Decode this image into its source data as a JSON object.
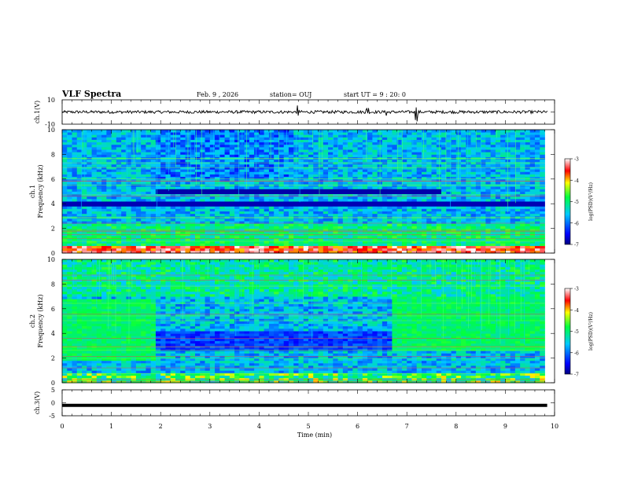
{
  "header": {
    "title": "VLF Spectra",
    "date": "Feb. 9 , 2026",
    "station": "station= OUJ",
    "start_ut": "start UT =  9 : 20: 0"
  },
  "chart_data": [
    {
      "type": "line",
      "name": "ch1-voltage",
      "ylabel": "ch.1(V)",
      "ylim": [
        -10,
        10
      ],
      "y_tick_labels": [
        "10",
        "-10"
      ],
      "xlim": [
        0,
        10
      ],
      "series": [
        {
          "name": "ch.1",
          "mean": 0,
          "noise_amplitude": 1.2,
          "spikes_min": [
            4.8,
            6.2,
            6.6,
            7.2
          ]
        }
      ]
    },
    {
      "type": "heatmap",
      "name": "ch1-spectrogram",
      "ylabel": "ch.1\nFrequency (kHz)",
      "ylim": [
        0,
        10
      ],
      "y_tick_labels": [
        "0",
        "2",
        "4",
        "6",
        "8",
        "10"
      ],
      "xlim": [
        0,
        9.8
      ],
      "colorbar": {
        "label": "log(PSD)(V²/Hz)",
        "range": [
          -7,
          -3
        ],
        "tick_labels": [
          "-3",
          "-4",
          "-5",
          "-6",
          "-7"
        ]
      },
      "regime_change_min": [
        1.9,
        4.7,
        7.7
      ]
    },
    {
      "type": "heatmap",
      "name": "ch2-spectrogram",
      "ylabel": "ch.2\nFrequency (kHz)",
      "ylim": [
        0,
        10
      ],
      "y_tick_labels": [
        "0",
        "2",
        "4",
        "6",
        "8",
        "10"
      ],
      "xlim": [
        0,
        9.8
      ],
      "colorbar": {
        "label": "log(PSD)(V²/Hz)",
        "range": [
          -7,
          -3
        ],
        "tick_labels": [
          "-3",
          "-4",
          "-5",
          "-6",
          "-7"
        ]
      },
      "regime_change_min": [
        1.85,
        6.65
      ]
    },
    {
      "type": "line",
      "name": "ch3-voltage",
      "ylabel": "ch.3(V)",
      "ylim": [
        -5,
        5
      ],
      "y_tick_labels": [
        "5",
        "0",
        "-5"
      ],
      "xlim": [
        0,
        10
      ],
      "series": [
        {
          "name": "ch.3",
          "mean": -1.0,
          "noise_amplitude": 0.0
        }
      ]
    }
  ],
  "x_axis": {
    "label": "Time (min)",
    "range": [
      0,
      10
    ],
    "tick_labels": [
      "0",
      "1",
      "2",
      "3",
      "4",
      "5",
      "6",
      "7",
      "8",
      "9",
      "10"
    ]
  }
}
